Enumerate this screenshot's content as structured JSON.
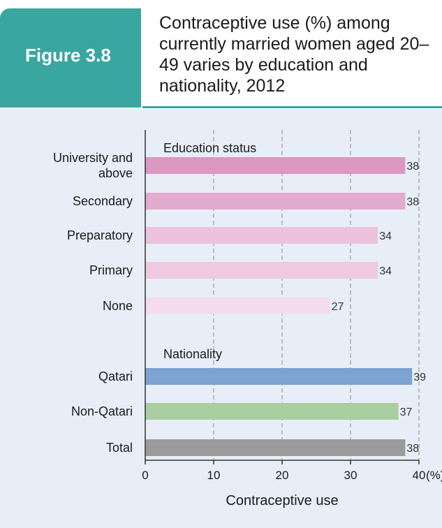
{
  "header": {
    "figure_label": "Figure 3.8",
    "title": "Contraceptive use (%) among currently married women aged 20–49 varies by education and nationality, 2012"
  },
  "colors": {
    "figure_label_bg": "#3aa6a0",
    "panel_bg": "#e7eef7",
    "edu_university": "#dc98c3",
    "edu_secondary": "#e2abd0",
    "edu_preparatory": "#ecc2df",
    "edu_primary": "#efc8e1",
    "edu_none": "#f5dced",
    "nat_qatari": "#7ca3d1",
    "nat_non_qatari": "#abcea0",
    "total": "#9b9b9b"
  },
  "chart_data": {
    "type": "bar",
    "orientation": "horizontal",
    "xlabel": "Contraceptive use",
    "unit_label": "(%)",
    "xlim": [
      0,
      40
    ],
    "xticks": [
      0,
      10,
      20,
      30,
      40
    ],
    "grid": "vertical dashed",
    "groups": [
      {
        "label": "Education status",
        "bars": [
          {
            "category": [
              "University and",
              "above"
            ],
            "value": 38,
            "color_key": "edu_university"
          },
          {
            "category": [
              "Secondary"
            ],
            "value": 38,
            "color_key": "edu_secondary"
          },
          {
            "category": [
              "Preparatory"
            ],
            "value": 34,
            "color_key": "edu_preparatory"
          },
          {
            "category": [
              "Primary"
            ],
            "value": 34,
            "color_key": "edu_primary"
          },
          {
            "category": [
              "None"
            ],
            "value": 27,
            "color_key": "edu_none"
          }
        ]
      },
      {
        "label": "Nationality",
        "bars": [
          {
            "category": [
              "Qatari"
            ],
            "value": 39,
            "color_key": "nat_qatari"
          },
          {
            "category": [
              "Non-Qatari"
            ],
            "value": 37,
            "color_key": "nat_non_qatari"
          },
          {
            "category": [
              "Total"
            ],
            "value": 38,
            "color_key": "total"
          }
        ]
      }
    ]
  }
}
